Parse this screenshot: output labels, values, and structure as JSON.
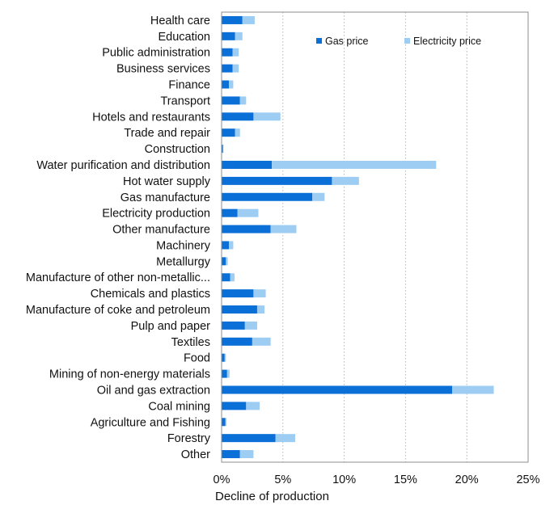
{
  "chart_data": {
    "type": "bar",
    "orientation": "horizontal",
    "stacked": true,
    "title": "",
    "xlabel": "Decline of production",
    "ylabel": "",
    "xlim": [
      0,
      25
    ],
    "x_ticks": [
      "0%",
      "5%",
      "10%",
      "15%",
      "20%",
      "25%"
    ],
    "grid": "vertical-dotted",
    "legend_position": "top-right",
    "categories": [
      "Health care",
      "Education",
      "Public administration",
      "Business services",
      "Finance",
      "Transport",
      "Hotels and restaurants",
      "Trade and repair",
      "Construction",
      "Water purification and distribution",
      "Hot water supply",
      "Gas manufacture",
      "Electricity production",
      "Other manufacture",
      "Machinery",
      "Metallurgy",
      "Manufacture of other non-metallic...",
      "Chemicals and plastics",
      "Manufacture of coke and petroleum",
      "Pulp and paper",
      "Textiles",
      "Food",
      "Mining of non-energy materials",
      "Oil and gas extraction",
      "Coal mining",
      "Agriculture and Fishing",
      "Forestry",
      "Other"
    ],
    "series": [
      {
        "name": "Gas price",
        "color": "#0a6fd6",
        "values": [
          1.7,
          1.1,
          0.9,
          0.9,
          0.6,
          1.5,
          2.6,
          1.1,
          0.1,
          4.1,
          9.0,
          7.4,
          1.3,
          4.0,
          0.6,
          0.35,
          0.7,
          2.6,
          2.9,
          1.9,
          2.5,
          0.25,
          0.45,
          18.8,
          2.0,
          0.3,
          4.4,
          1.5
        ]
      },
      {
        "name": "Electricity price",
        "color": "#9ecdf4",
        "values": [
          1.0,
          0.6,
          0.5,
          0.5,
          0.35,
          0.5,
          2.2,
          0.4,
          0.05,
          13.4,
          2.2,
          1.0,
          1.7,
          2.1,
          0.35,
          0.15,
          0.35,
          1.0,
          0.6,
          1.0,
          1.5,
          0.1,
          0.2,
          3.4,
          1.1,
          0.1,
          1.6,
          1.1
        ]
      }
    ]
  }
}
